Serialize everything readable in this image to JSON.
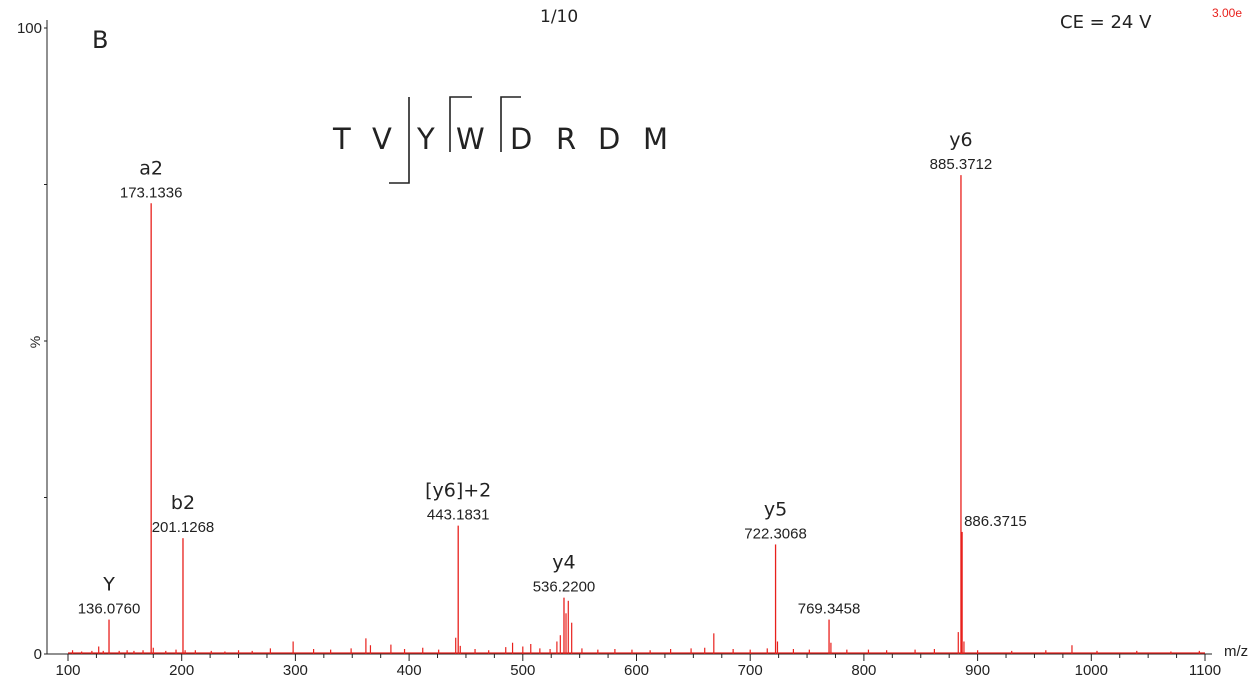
{
  "header": {
    "panel_letter": "B",
    "scan_label": "1/10",
    "collision_energy": "CE = 24 V",
    "intensity": "3.00e"
  },
  "sequence": {
    "residues": [
      "T",
      "V",
      "Y",
      "W",
      "D",
      "R",
      "D",
      "M"
    ]
  },
  "chart_data": {
    "type": "bar",
    "subtype": "mass-spectrum",
    "title": "",
    "xlabel": "m/z",
    "ylabel": "%",
    "xlim": [
      100,
      1100
    ],
    "ylim": [
      0,
      100
    ],
    "x_ticks": [
      100,
      200,
      300,
      400,
      500,
      600,
      700,
      800,
      900,
      1000,
      1100
    ],
    "y_ticks": [
      0,
      100
    ],
    "grid": false,
    "color": "#e8201c",
    "labeled_peaks": [
      {
        "mz": 136.076,
        "intensity": 5.5,
        "ion": "Y",
        "mz_label": "136.0760"
      },
      {
        "mz": 173.1336,
        "intensity": 72,
        "ion": "a2",
        "mz_label": "173.1336"
      },
      {
        "mz": 201.1268,
        "intensity": 18.5,
        "ion": "b2",
        "mz_label": "201.1268"
      },
      {
        "mz": 443.1831,
        "intensity": 20.5,
        "ion": "[y6]+2",
        "mz_label": "443.1831"
      },
      {
        "mz": 536.22,
        "intensity": 9,
        "ion": "y4",
        "mz_label": "536.2200"
      },
      {
        "mz": 722.3068,
        "intensity": 17.5,
        "ion": "y5",
        "mz_label": "722.3068"
      },
      {
        "mz": 769.3458,
        "intensity": 5.5,
        "ion": "",
        "mz_label": "769.3458"
      },
      {
        "mz": 885.3712,
        "intensity": 76.5,
        "ion": "y6",
        "mz_label": "885.3712"
      },
      {
        "mz": 886.3715,
        "intensity": 19.5,
        "ion": "",
        "mz_label": "886.3715"
      }
    ],
    "minor_peaks": [
      [
        104,
        0.6
      ],
      [
        112,
        0.4
      ],
      [
        121,
        0.5
      ],
      [
        127,
        1.2
      ],
      [
        131,
        0.5
      ],
      [
        145,
        0.5
      ],
      [
        152,
        0.6
      ],
      [
        158,
        0.5
      ],
      [
        166,
        0.6
      ],
      [
        175,
        1.0
      ],
      [
        186,
        0.5
      ],
      [
        195,
        0.7
      ],
      [
        203,
        0.6
      ],
      [
        212,
        0.6
      ],
      [
        226,
        0.5
      ],
      [
        238,
        0.4
      ],
      [
        250,
        0.6
      ],
      [
        262,
        0.5
      ],
      [
        278,
        0.9
      ],
      [
        298,
        2.0
      ],
      [
        316,
        0.8
      ],
      [
        331,
        0.7
      ],
      [
        349,
        0.9
      ],
      [
        362,
        2.5
      ],
      [
        366,
        1.4
      ],
      [
        384,
        1.5
      ],
      [
        396,
        0.8
      ],
      [
        412,
        1.0
      ],
      [
        426,
        0.7
      ],
      [
        441,
        2.6
      ],
      [
        445,
        1.3
      ],
      [
        458,
        0.8
      ],
      [
        470,
        0.6
      ],
      [
        485,
        1.1
      ],
      [
        491,
        1.8
      ],
      [
        500,
        1.2
      ],
      [
        507,
        1.6
      ],
      [
        515,
        0.9
      ],
      [
        524,
        0.8
      ],
      [
        530,
        2.0
      ],
      [
        533,
        3.0
      ],
      [
        538,
        6.5
      ],
      [
        540,
        8.5
      ],
      [
        543,
        5.0
      ],
      [
        552,
        0.9
      ],
      [
        566,
        0.7
      ],
      [
        581,
        0.8
      ],
      [
        596,
        0.7
      ],
      [
        612,
        0.6
      ],
      [
        630,
        0.8
      ],
      [
        648,
        0.9
      ],
      [
        660,
        1.0
      ],
      [
        668,
        3.3
      ],
      [
        685,
        0.8
      ],
      [
        700,
        0.7
      ],
      [
        715,
        0.9
      ],
      [
        724,
        2.0
      ],
      [
        738,
        0.8
      ],
      [
        752,
        0.7
      ],
      [
        771,
        1.8
      ],
      [
        785,
        0.7
      ],
      [
        804,
        0.7
      ],
      [
        820,
        0.6
      ],
      [
        845,
        0.7
      ],
      [
        862,
        0.8
      ],
      [
        883,
        3.5
      ],
      [
        888,
        2.0
      ],
      [
        900,
        0.6
      ],
      [
        930,
        0.5
      ],
      [
        960,
        0.6
      ],
      [
        983,
        1.4
      ],
      [
        1005,
        0.5
      ],
      [
        1040,
        0.5
      ],
      [
        1070,
        0.4
      ],
      [
        1095,
        0.5
      ]
    ]
  }
}
